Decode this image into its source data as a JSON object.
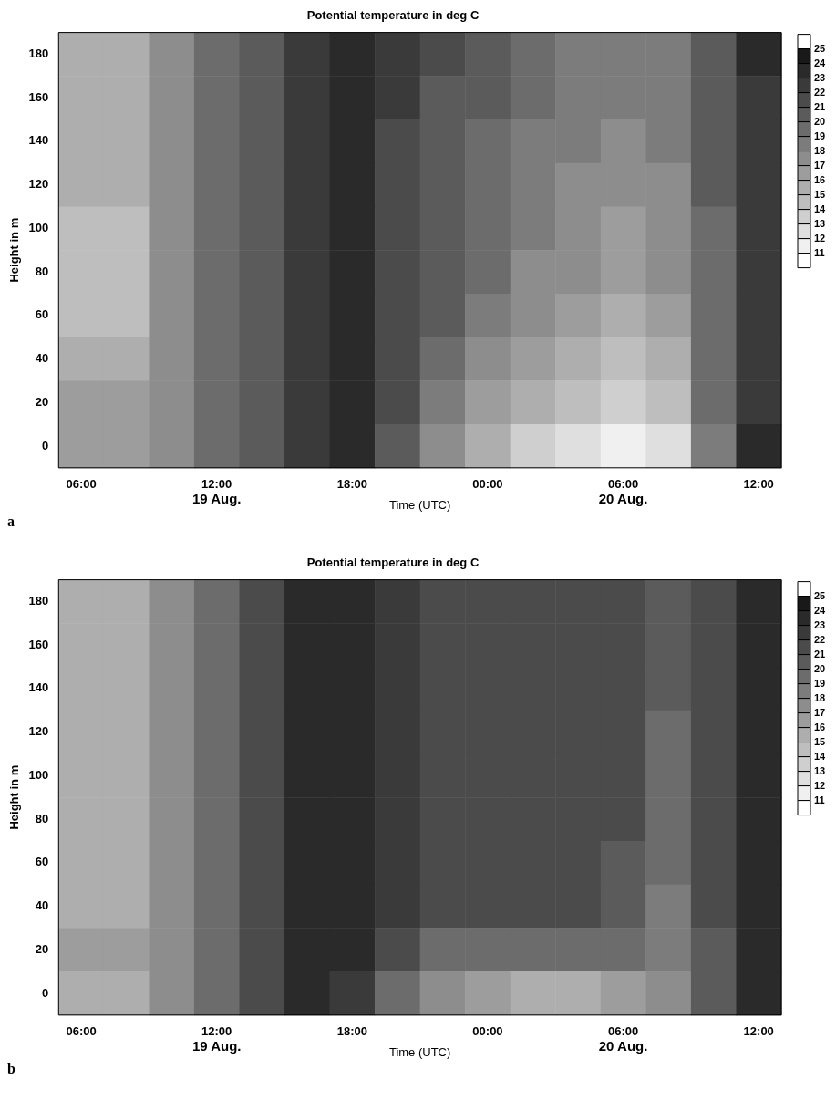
{
  "chart_data": [
    {
      "type": "heatmap",
      "title": "Potential temperature in deg C",
      "xlabel": "Time (UTC)",
      "ylabel": "Height in m",
      "categories": [
        "06:00",
        null,
        null,
        "12:00",
        null,
        null,
        "18:00",
        null,
        null,
        "00:00",
        null,
        null,
        "06:00",
        null,
        null,
        "12:00"
      ],
      "y_categories": [
        "180",
        "160",
        "140",
        "120",
        "100",
        "80",
        "60",
        "40",
        "20",
        "0"
      ],
      "clim": [
        10,
        26
      ],
      "cticks": [
        11,
        12,
        13,
        14,
        15,
        16,
        17,
        18,
        19,
        20,
        21,
        22,
        23,
        24,
        25
      ],
      "cells": [
        [
          15,
          15,
          17,
          19,
          20,
          22,
          23,
          22,
          21,
          20,
          19,
          18,
          18,
          18,
          20,
          23
        ],
        [
          15,
          15,
          17,
          19,
          20,
          22,
          23,
          22,
          20,
          20,
          19,
          18,
          18,
          18,
          20,
          22
        ],
        [
          15,
          15,
          17,
          19,
          20,
          22,
          23,
          21,
          20,
          19,
          18,
          18,
          17,
          18,
          20,
          22
        ],
        [
          15,
          15,
          17,
          19,
          20,
          22,
          23,
          21,
          20,
          19,
          18,
          17,
          17,
          17,
          20,
          22
        ],
        [
          14,
          14,
          17,
          19,
          20,
          22,
          23,
          21,
          20,
          19,
          18,
          17,
          16,
          17,
          19,
          22
        ],
        [
          14,
          14,
          17,
          19,
          20,
          22,
          23,
          21,
          20,
          19,
          17,
          17,
          16,
          17,
          19,
          22
        ],
        [
          14,
          14,
          17,
          19,
          20,
          22,
          23,
          21,
          20,
          18,
          17,
          16,
          15,
          16,
          19,
          22
        ],
        [
          15,
          15,
          17,
          19,
          20,
          22,
          23,
          21,
          19,
          17,
          16,
          15,
          14,
          15,
          19,
          22
        ],
        [
          16,
          16,
          17,
          19,
          20,
          22,
          23,
          21,
          18,
          16,
          15,
          14,
          13,
          14,
          19,
          22
        ],
        [
          16,
          16,
          17,
          19,
          20,
          22,
          23,
          20,
          17,
          15,
          13,
          12,
          11,
          12,
          18,
          23
        ]
      ],
      "annotations": [
        "19 Aug.",
        "20 Aug.",
        "a"
      ]
    },
    {
      "type": "heatmap",
      "title": "Potential temperature in deg C",
      "xlabel": "Time (UTC)",
      "ylabel": "Height in m",
      "categories": [
        "06:00",
        null,
        null,
        "12:00",
        null,
        null,
        "18:00",
        null,
        null,
        "00:00",
        null,
        null,
        "06:00",
        null,
        null,
        "12:00"
      ],
      "y_categories": [
        "180",
        "160",
        "140",
        "120",
        "100",
        "80",
        "60",
        "40",
        "20",
        "0"
      ],
      "clim": [
        10,
        26
      ],
      "cticks": [
        11,
        12,
        13,
        14,
        15,
        16,
        17,
        18,
        19,
        20,
        21,
        22,
        23,
        24,
        25
      ],
      "cells": [
        [
          15,
          15,
          17,
          19,
          21,
          23,
          23,
          22,
          21,
          21,
          21,
          21,
          21,
          20,
          21,
          23
        ],
        [
          15,
          15,
          17,
          19,
          21,
          23,
          23,
          22,
          21,
          21,
          21,
          21,
          21,
          20,
          21,
          23
        ],
        [
          15,
          15,
          17,
          19,
          21,
          23,
          23,
          22,
          21,
          21,
          21,
          21,
          21,
          20,
          21,
          23
        ],
        [
          15,
          15,
          17,
          19,
          21,
          23,
          23,
          22,
          21,
          21,
          21,
          21,
          21,
          19,
          21,
          23
        ],
        [
          15,
          15,
          17,
          19,
          21,
          23,
          23,
          22,
          21,
          21,
          21,
          21,
          21,
          19,
          21,
          23
        ],
        [
          15,
          15,
          17,
          19,
          21,
          23,
          23,
          22,
          21,
          21,
          21,
          21,
          21,
          19,
          21,
          23
        ],
        [
          15,
          15,
          17,
          19,
          21,
          23,
          23,
          22,
          21,
          21,
          21,
          21,
          20,
          19,
          21,
          23
        ],
        [
          15,
          15,
          17,
          19,
          21,
          23,
          23,
          22,
          21,
          21,
          21,
          21,
          20,
          18,
          21,
          23
        ],
        [
          16,
          16,
          17,
          19,
          21,
          23,
          23,
          21,
          19,
          19,
          19,
          19,
          19,
          18,
          20,
          23
        ],
        [
          15,
          15,
          17,
          19,
          21,
          23,
          22,
          19,
          17,
          16,
          15,
          15,
          16,
          17,
          20,
          23
        ]
      ],
      "annotations": [
        "19 Aug.",
        "20 Aug.",
        "b"
      ]
    }
  ]
}
